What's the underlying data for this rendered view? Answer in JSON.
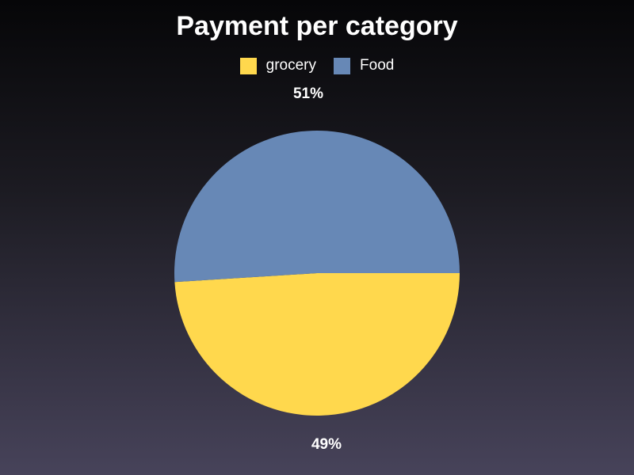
{
  "chart_data": {
    "type": "pie",
    "title": "Payment per category",
    "legend_position": "top",
    "slices": [
      {
        "label": "grocery",
        "value": 49,
        "display": "49%",
        "color": "#ffd84d"
      },
      {
        "label": "Food",
        "value": 51,
        "display": "51%",
        "color": "#6788b6"
      }
    ]
  }
}
